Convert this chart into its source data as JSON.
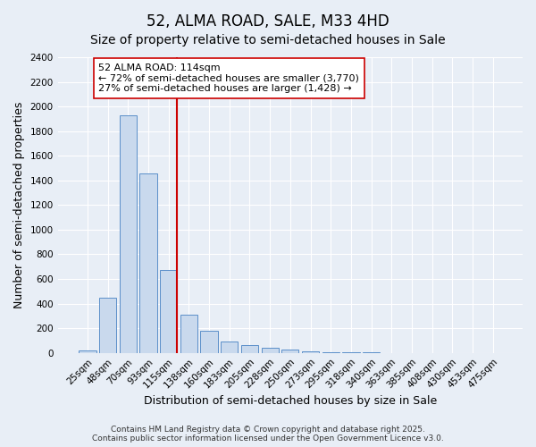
{
  "title": "52, ALMA ROAD, SALE, M33 4HD",
  "subtitle": "Size of property relative to semi-detached houses in Sale",
  "xlabel": "Distribution of semi-detached houses by size in Sale",
  "ylabel": "Number of semi-detached properties",
  "categories": [
    "25sqm",
    "48sqm",
    "70sqm",
    "93sqm",
    "115sqm",
    "138sqm",
    "160sqm",
    "183sqm",
    "205sqm",
    "228sqm",
    "250sqm",
    "273sqm",
    "295sqm",
    "318sqm",
    "340sqm",
    "363sqm",
    "385sqm",
    "408sqm",
    "430sqm",
    "453sqm",
    "475sqm"
  ],
  "values": [
    20,
    450,
    1930,
    1460,
    670,
    310,
    180,
    95,
    65,
    42,
    30,
    15,
    8,
    4,
    2,
    1,
    0,
    0,
    0,
    0,
    0
  ],
  "bar_color": "#c9d9ed",
  "bar_edge_color": "#5b8fc9",
  "ylim": [
    0,
    2400
  ],
  "yticks": [
    0,
    200,
    400,
    600,
    800,
    1000,
    1200,
    1400,
    1600,
    1800,
    2000,
    2200,
    2400
  ],
  "property_bin_index": 4,
  "vline_color": "#cc0000",
  "annotation_text": "52 ALMA ROAD: 114sqm\n← 72% of semi-detached houses are smaller (3,770)\n27% of semi-detached houses are larger (1,428) →",
  "annotation_box_color": "#ffffff",
  "annotation_box_edge_color": "#cc0000",
  "footnote": "Contains HM Land Registry data © Crown copyright and database right 2025.\nContains public sector information licensed under the Open Government Licence v3.0.",
  "background_color": "#e8eef6",
  "grid_color": "#ffffff",
  "title_fontsize": 12,
  "subtitle_fontsize": 10,
  "label_fontsize": 9,
  "tick_fontsize": 7.5,
  "annotation_fontsize": 8,
  "footnote_fontsize": 6.5
}
